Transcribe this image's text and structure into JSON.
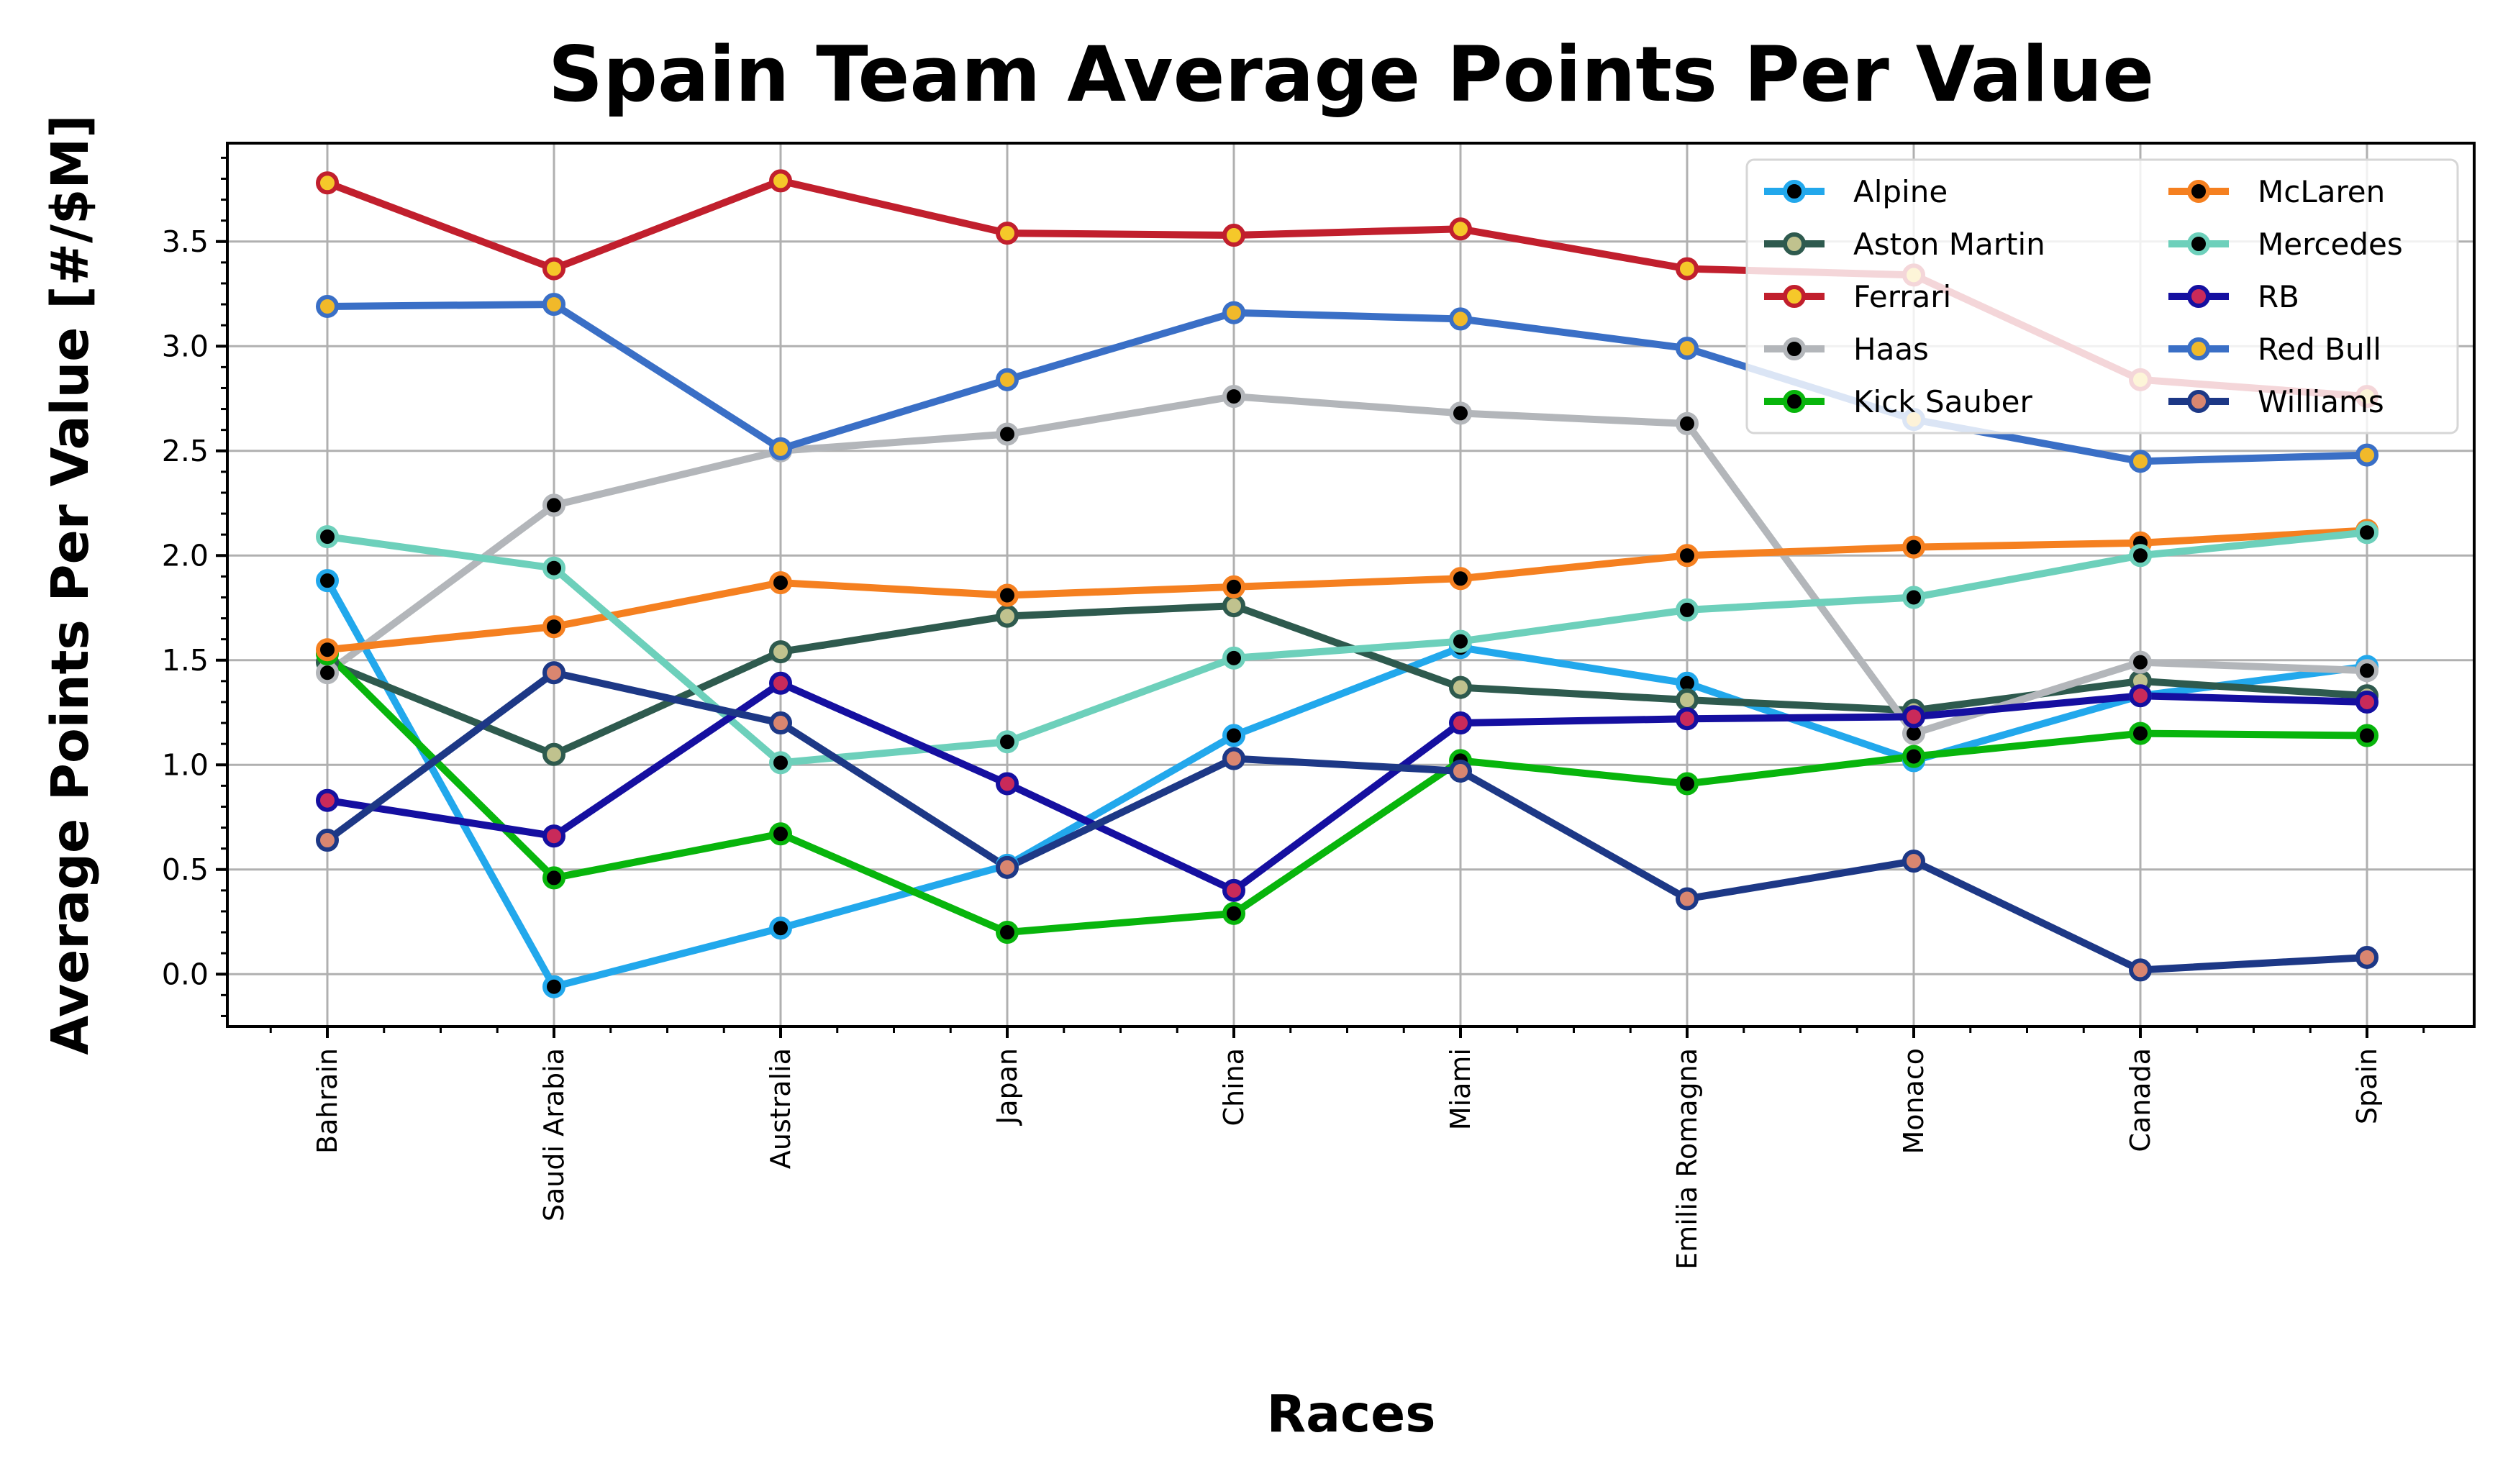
{
  "chart_data": {
    "type": "line",
    "title": "Spain Team Average Points Per Value",
    "xlabel": "Races",
    "ylabel": "Average Points Per Value [#/$M]",
    "categories": [
      "Bahrain",
      "Saudi Arabia",
      "Australia",
      "Japan",
      "China",
      "Miami",
      "Emilia Romagna",
      "Monaco",
      "Canada",
      "Spain"
    ],
    "ylim": [
      -0.25,
      3.97
    ],
    "yticks": [
      "0.0",
      "0.5",
      "1.0",
      "1.5",
      "2.0",
      "2.5",
      "3.0",
      "3.5"
    ],
    "grid": true,
    "legend_position": "top-right",
    "legend_columns": 2,
    "series": [
      {
        "name": "Alpine",
        "color": "#22a8ec",
        "marker_face": "#000000",
        "marker_edge": "#22a8ec",
        "values": [
          1.88,
          -0.06,
          0.22,
          0.52,
          1.14,
          1.56,
          1.39,
          1.02,
          1.33,
          1.47
        ]
      },
      {
        "name": "Aston Martin",
        "color": "#2e5a4e",
        "marker_face": "#c0c28e",
        "marker_edge": "#2e5a4e",
        "values": [
          1.49,
          1.05,
          1.54,
          1.71,
          1.76,
          1.37,
          1.31,
          1.26,
          1.4,
          1.33
        ]
      },
      {
        "name": "Ferrari",
        "color": "#c11f2d",
        "marker_face": "#f5c82a",
        "marker_edge": "#c11f2d",
        "values": [
          3.78,
          3.37,
          3.79,
          3.54,
          3.53,
          3.56,
          3.37,
          3.34,
          2.84,
          2.76
        ]
      },
      {
        "name": "Haas",
        "color": "#b3b6ba",
        "marker_face": "#000000",
        "marker_edge": "#b3b6ba",
        "values": [
          1.44,
          2.24,
          2.5,
          2.58,
          2.76,
          2.68,
          2.63,
          1.15,
          1.49,
          1.45
        ]
      },
      {
        "name": "Kick Sauber",
        "color": "#08b50c",
        "marker_face": "#000000",
        "marker_edge": "#08b50c",
        "values": [
          1.53,
          0.46,
          0.67,
          0.2,
          0.29,
          1.02,
          0.91,
          1.04,
          1.15,
          1.14
        ]
      },
      {
        "name": "McLaren",
        "color": "#f58020",
        "marker_face": "#000000",
        "marker_edge": "#f58020",
        "values": [
          1.55,
          1.66,
          1.87,
          1.81,
          1.85,
          1.89,
          2.0,
          2.04,
          2.06,
          2.12
        ]
      },
      {
        "name": "Mercedes",
        "color": "#6dd0bb",
        "marker_face": "#000000",
        "marker_edge": "#6dd0bb",
        "values": [
          2.09,
          1.94,
          1.01,
          1.11,
          1.51,
          1.59,
          1.74,
          1.8,
          2.0,
          2.11
        ]
      },
      {
        "name": "RB",
        "color": "#150fa0",
        "marker_face": "#c92a5a",
        "marker_edge": "#150fa0",
        "values": [
          0.83,
          0.66,
          1.39,
          0.91,
          0.4,
          1.2,
          1.22,
          1.23,
          1.33,
          1.3
        ]
      },
      {
        "name": "Red Bull",
        "color": "#3a6fc6",
        "marker_face": "#f1b92a",
        "marker_edge": "#3a6fc6",
        "values": [
          3.19,
          3.2,
          2.51,
          2.84,
          3.16,
          3.13,
          2.99,
          2.65,
          2.45,
          2.48
        ]
      },
      {
        "name": "Williams",
        "color": "#1d3886",
        "marker_face": "#d98670",
        "marker_edge": "#1d3886",
        "values": [
          0.64,
          1.44,
          1.2,
          0.51,
          1.03,
          0.97,
          0.36,
          0.54,
          0.02,
          0.08
        ]
      }
    ]
  }
}
